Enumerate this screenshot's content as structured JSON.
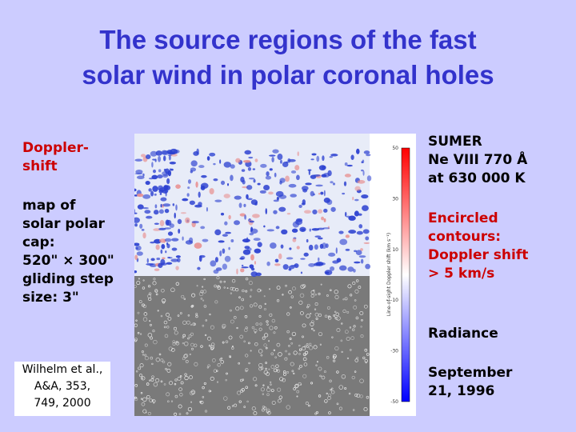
{
  "title": [
    "The source regions of the fast",
    "solar wind in polar coronal holes"
  ],
  "left": {
    "heading": [
      "Doppler-",
      "shift"
    ],
    "body": [
      "map of",
      "solar polar",
      "cap:",
      "520\" × 300\"",
      "gliding step",
      "size: 3\""
    ]
  },
  "citation": [
    "Wilhelm et al.,",
    "A&A, 353,",
    "749, 2000"
  ],
  "right": {
    "instrument": [
      "SUMER",
      "Ne VIII 770 Å",
      "at  630 000 K"
    ],
    "contours": [
      "Encircled",
      "contours:",
      "Doppler shift",
      "> 5 km/s"
    ],
    "radiance": "Radiance",
    "date": [
      "September",
      "21, 1996"
    ]
  },
  "colorbar": {
    "label": "Line-of-sight Doppler shift (km s⁻¹)",
    "ticks": [
      50,
      30,
      10,
      -10,
      -30,
      -50
    ]
  }
}
